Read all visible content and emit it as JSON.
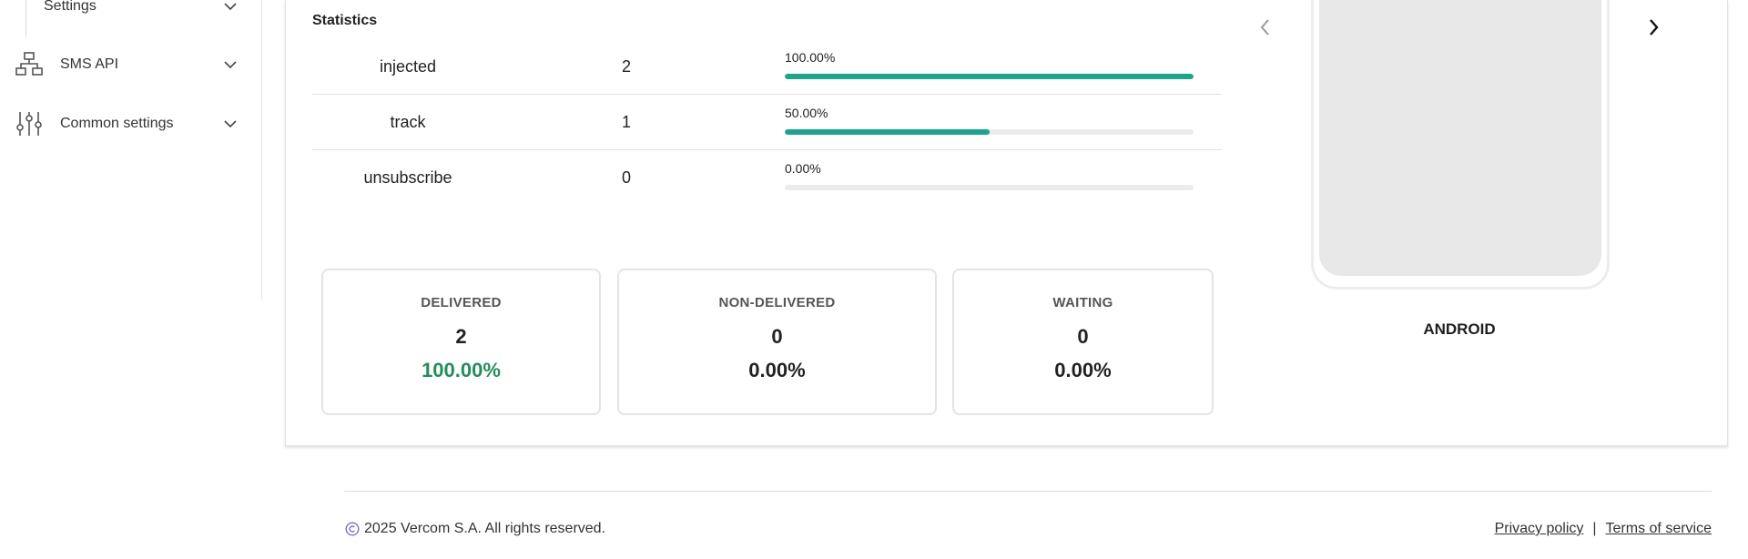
{
  "sidebar": {
    "items": [
      {
        "label": "Settings",
        "icon": "none",
        "sub": true
      },
      {
        "label": "SMS API",
        "icon": "sitemap-icon"
      },
      {
        "label": "Common settings",
        "icon": "sliders-icon"
      }
    ]
  },
  "statistics": {
    "title": "Statistics",
    "rows": [
      {
        "name": "injected",
        "count": "2",
        "percent_label": "100.00%",
        "percent": 100
      },
      {
        "name": "track",
        "count": "1",
        "percent_label": "50.00%",
        "percent": 50
      },
      {
        "name": "unsubscribe",
        "count": "0",
        "percent_label": "0.00%",
        "percent": 0
      }
    ]
  },
  "summary": [
    {
      "title": "DELIVERED",
      "count": "2",
      "percent": "100.00%",
      "color": "#1f8f58"
    },
    {
      "title": "NON-DELIVERED",
      "count": "0",
      "percent": "0.00%",
      "color": "#222222"
    },
    {
      "title": "WAITING",
      "count": "0",
      "percent": "0.00%",
      "color": "#222222"
    }
  ],
  "preview": {
    "platform": "ANDROID"
  },
  "footer": {
    "copyright": "2025 Vercom S.A. All rights reserved.",
    "privacy": "Privacy policy",
    "separator": "|",
    "terms": "Terms of service"
  },
  "colors": {
    "accent": "#1aa68c",
    "success": "#1f8f58",
    "copyright_icon": "#7b6fd6"
  }
}
